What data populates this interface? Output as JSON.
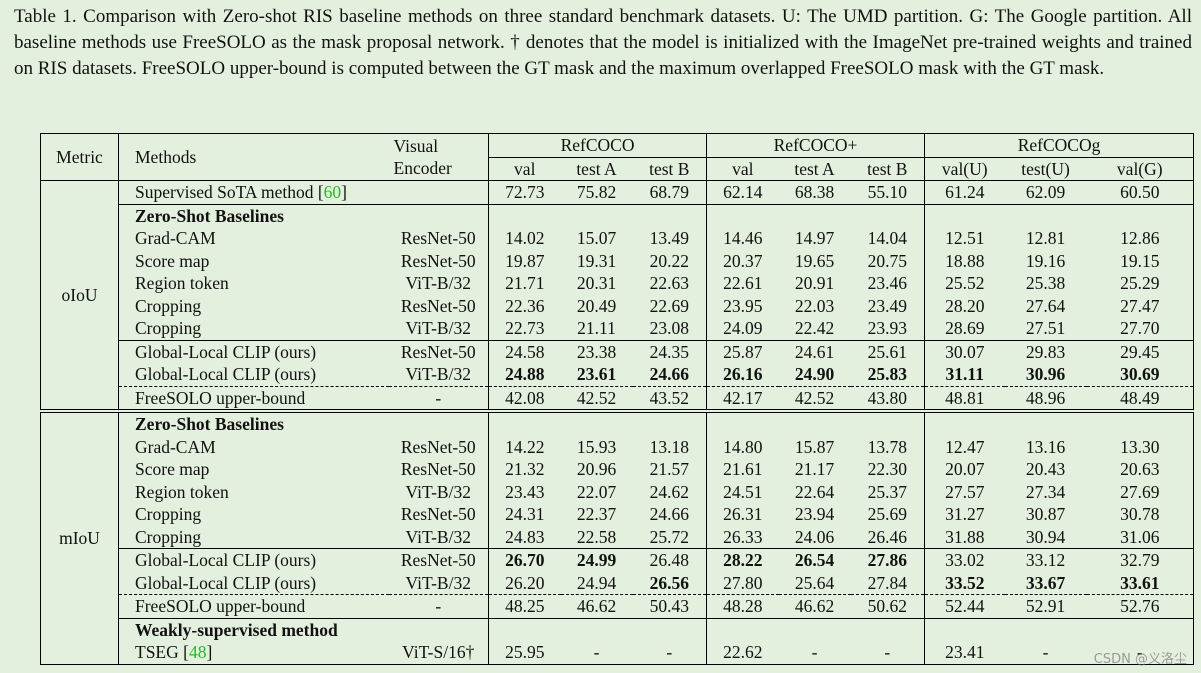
{
  "caption": "Table 1. Comparison with Zero-shot RIS baseline methods on three standard benchmark datasets. U: The UMD partition. G: The Google partition. All baseline methods use FreeSOLO as the mask proposal network. † denotes that the model is initialized with the ImageNet pre-trained weights and trained on RIS datasets. FreeSOLO upper-bound is computed between the GT mask and the maximum overlapped FreeSOLO mask with the GT mask.",
  "table": {
    "header": {
      "metric": "Metric",
      "methods": "Methods",
      "encoder": "Visual\nEncoder",
      "groups": [
        {
          "name": "RefCOCO",
          "columns": [
            "val",
            "test A",
            "test B"
          ]
        },
        {
          "name": "RefCOCO+",
          "columns": [
            "val",
            "test A",
            "test B"
          ]
        },
        {
          "name": "RefCOCOg",
          "columns": [
            "val(U)",
            "test(U)",
            "val(G)"
          ]
        }
      ]
    },
    "sections": [
      {
        "metric": "oIoU",
        "rows": [
          {
            "method": "Supervised SoTA method",
            "citation": [
              "[",
              "60",
              "]"
            ],
            "values": [
              "72.73",
              "75.82",
              "68.79",
              "62.14",
              "68.38",
              "55.10",
              "61.24",
              "62.09",
              "60.50"
            ]
          },
          {
            "heading": "Zero-Shot Baselines",
            "rule": "solid"
          },
          {
            "method": "Grad-CAM",
            "encoder": "ResNet-50",
            "values": [
              "14.02",
              "15.07",
              "13.49",
              "14.46",
              "14.97",
              "14.04",
              "12.51",
              "12.81",
              "12.86"
            ]
          },
          {
            "method": "Score map",
            "encoder": "ResNet-50",
            "values": [
              "19.87",
              "19.31",
              "20.22",
              "20.37",
              "19.65",
              "20.75",
              "18.88",
              "19.16",
              "19.15"
            ]
          },
          {
            "method": "Region token",
            "encoder": "ViT-B/32",
            "values": [
              "21.71",
              "20.31",
              "22.63",
              "22.61",
              "20.91",
              "23.46",
              "25.52",
              "25.38",
              "25.29"
            ]
          },
          {
            "method": "Cropping",
            "encoder": "ResNet-50",
            "values": [
              "22.36",
              "20.49",
              "22.69",
              "23.95",
              "22.03",
              "23.49",
              "28.20",
              "27.64",
              "27.47"
            ]
          },
          {
            "method": "Cropping",
            "encoder": "ViT-B/32",
            "values": [
              "22.73",
              "21.11",
              "23.08",
              "24.09",
              "22.42",
              "23.93",
              "28.69",
              "27.51",
              "27.70"
            ]
          },
          {
            "method": "Global-Local CLIP (ours)",
            "encoder": "ResNet-50",
            "rule": "solid",
            "values": [
              "24.58",
              "23.38",
              "24.35",
              "25.87",
              "24.61",
              "25.61",
              "30.07",
              "29.83",
              "29.45"
            ]
          },
          {
            "method": "Global-Local CLIP (ours)",
            "encoder": "ViT-B/32",
            "bold": [
              0,
              1,
              2,
              3,
              4,
              5,
              6,
              7,
              8
            ],
            "values": [
              "24.88",
              "23.61",
              "24.66",
              "26.16",
              "24.90",
              "25.83",
              "31.11",
              "30.96",
              "30.69"
            ]
          },
          {
            "method": "FreeSOLO upper-bound",
            "encoder": "-",
            "rule": "dashed",
            "values": [
              "42.08",
              "42.52",
              "43.52",
              "42.17",
              "42.52",
              "43.80",
              "48.81",
              "48.96",
              "48.49"
            ]
          }
        ]
      },
      {
        "metric": "mIoU",
        "rows": [
          {
            "heading": "Zero-Shot Baselines"
          },
          {
            "method": "Grad-CAM",
            "encoder": "ResNet-50",
            "values": [
              "14.22",
              "15.93",
              "13.18",
              "14.80",
              "15.87",
              "13.78",
              "12.47",
              "13.16",
              "13.30"
            ]
          },
          {
            "method": "Score map",
            "encoder": "ResNet-50",
            "values": [
              "21.32",
              "20.96",
              "21.57",
              "21.61",
              "21.17",
              "22.30",
              "20.07",
              "20.43",
              "20.63"
            ]
          },
          {
            "method": "Region token",
            "encoder": "ViT-B/32",
            "values": [
              "23.43",
              "22.07",
              "24.62",
              "24.51",
              "22.64",
              "25.37",
              "27.57",
              "27.34",
              "27.69"
            ]
          },
          {
            "method": "Cropping",
            "encoder": "ResNet-50",
            "values": [
              "24.31",
              "22.37",
              "24.66",
              "26.31",
              "23.94",
              "25.69",
              "31.27",
              "30.87",
              "30.78"
            ]
          },
          {
            "method": "Cropping",
            "encoder": "ViT-B/32",
            "values": [
              "24.83",
              "22.58",
              "25.72",
              "26.33",
              "24.06",
              "26.46",
              "31.88",
              "30.94",
              "31.06"
            ]
          },
          {
            "method": "Global-Local CLIP (ours)",
            "encoder": "ResNet-50",
            "rule": "solid",
            "bold": [
              0,
              1,
              3,
              4,
              5
            ],
            "values": [
              "26.70",
              "24.99",
              "26.48",
              "28.22",
              "26.54",
              "27.86",
              "33.02",
              "33.12",
              "32.79"
            ]
          },
          {
            "method": "Global-Local CLIP (ours)",
            "encoder": "ViT-B/32",
            "bold": [
              2,
              6,
              7,
              8
            ],
            "values": [
              "26.20",
              "24.94",
              "26.56",
              "27.80",
              "25.64",
              "27.84",
              "33.52",
              "33.67",
              "33.61"
            ]
          },
          {
            "method": "FreeSOLO upper-bound",
            "encoder": "-",
            "rule": "dashed",
            "values": [
              "48.25",
              "46.62",
              "50.43",
              "48.28",
              "46.62",
              "50.62",
              "52.44",
              "52.91",
              "52.76"
            ]
          },
          {
            "heading": "Weakly-supervised method",
            "rule": "solid"
          },
          {
            "method": "TSEG",
            "citation": [
              "[",
              "48",
              "]"
            ],
            "encoder": "ViT-S/16†",
            "values": [
              "25.95",
              "-",
              "-",
              "22.62",
              "-",
              "-",
              "23.41",
              "-",
              "-"
            ]
          }
        ]
      }
    ]
  },
  "watermark": "CSDN @义洛尘"
}
